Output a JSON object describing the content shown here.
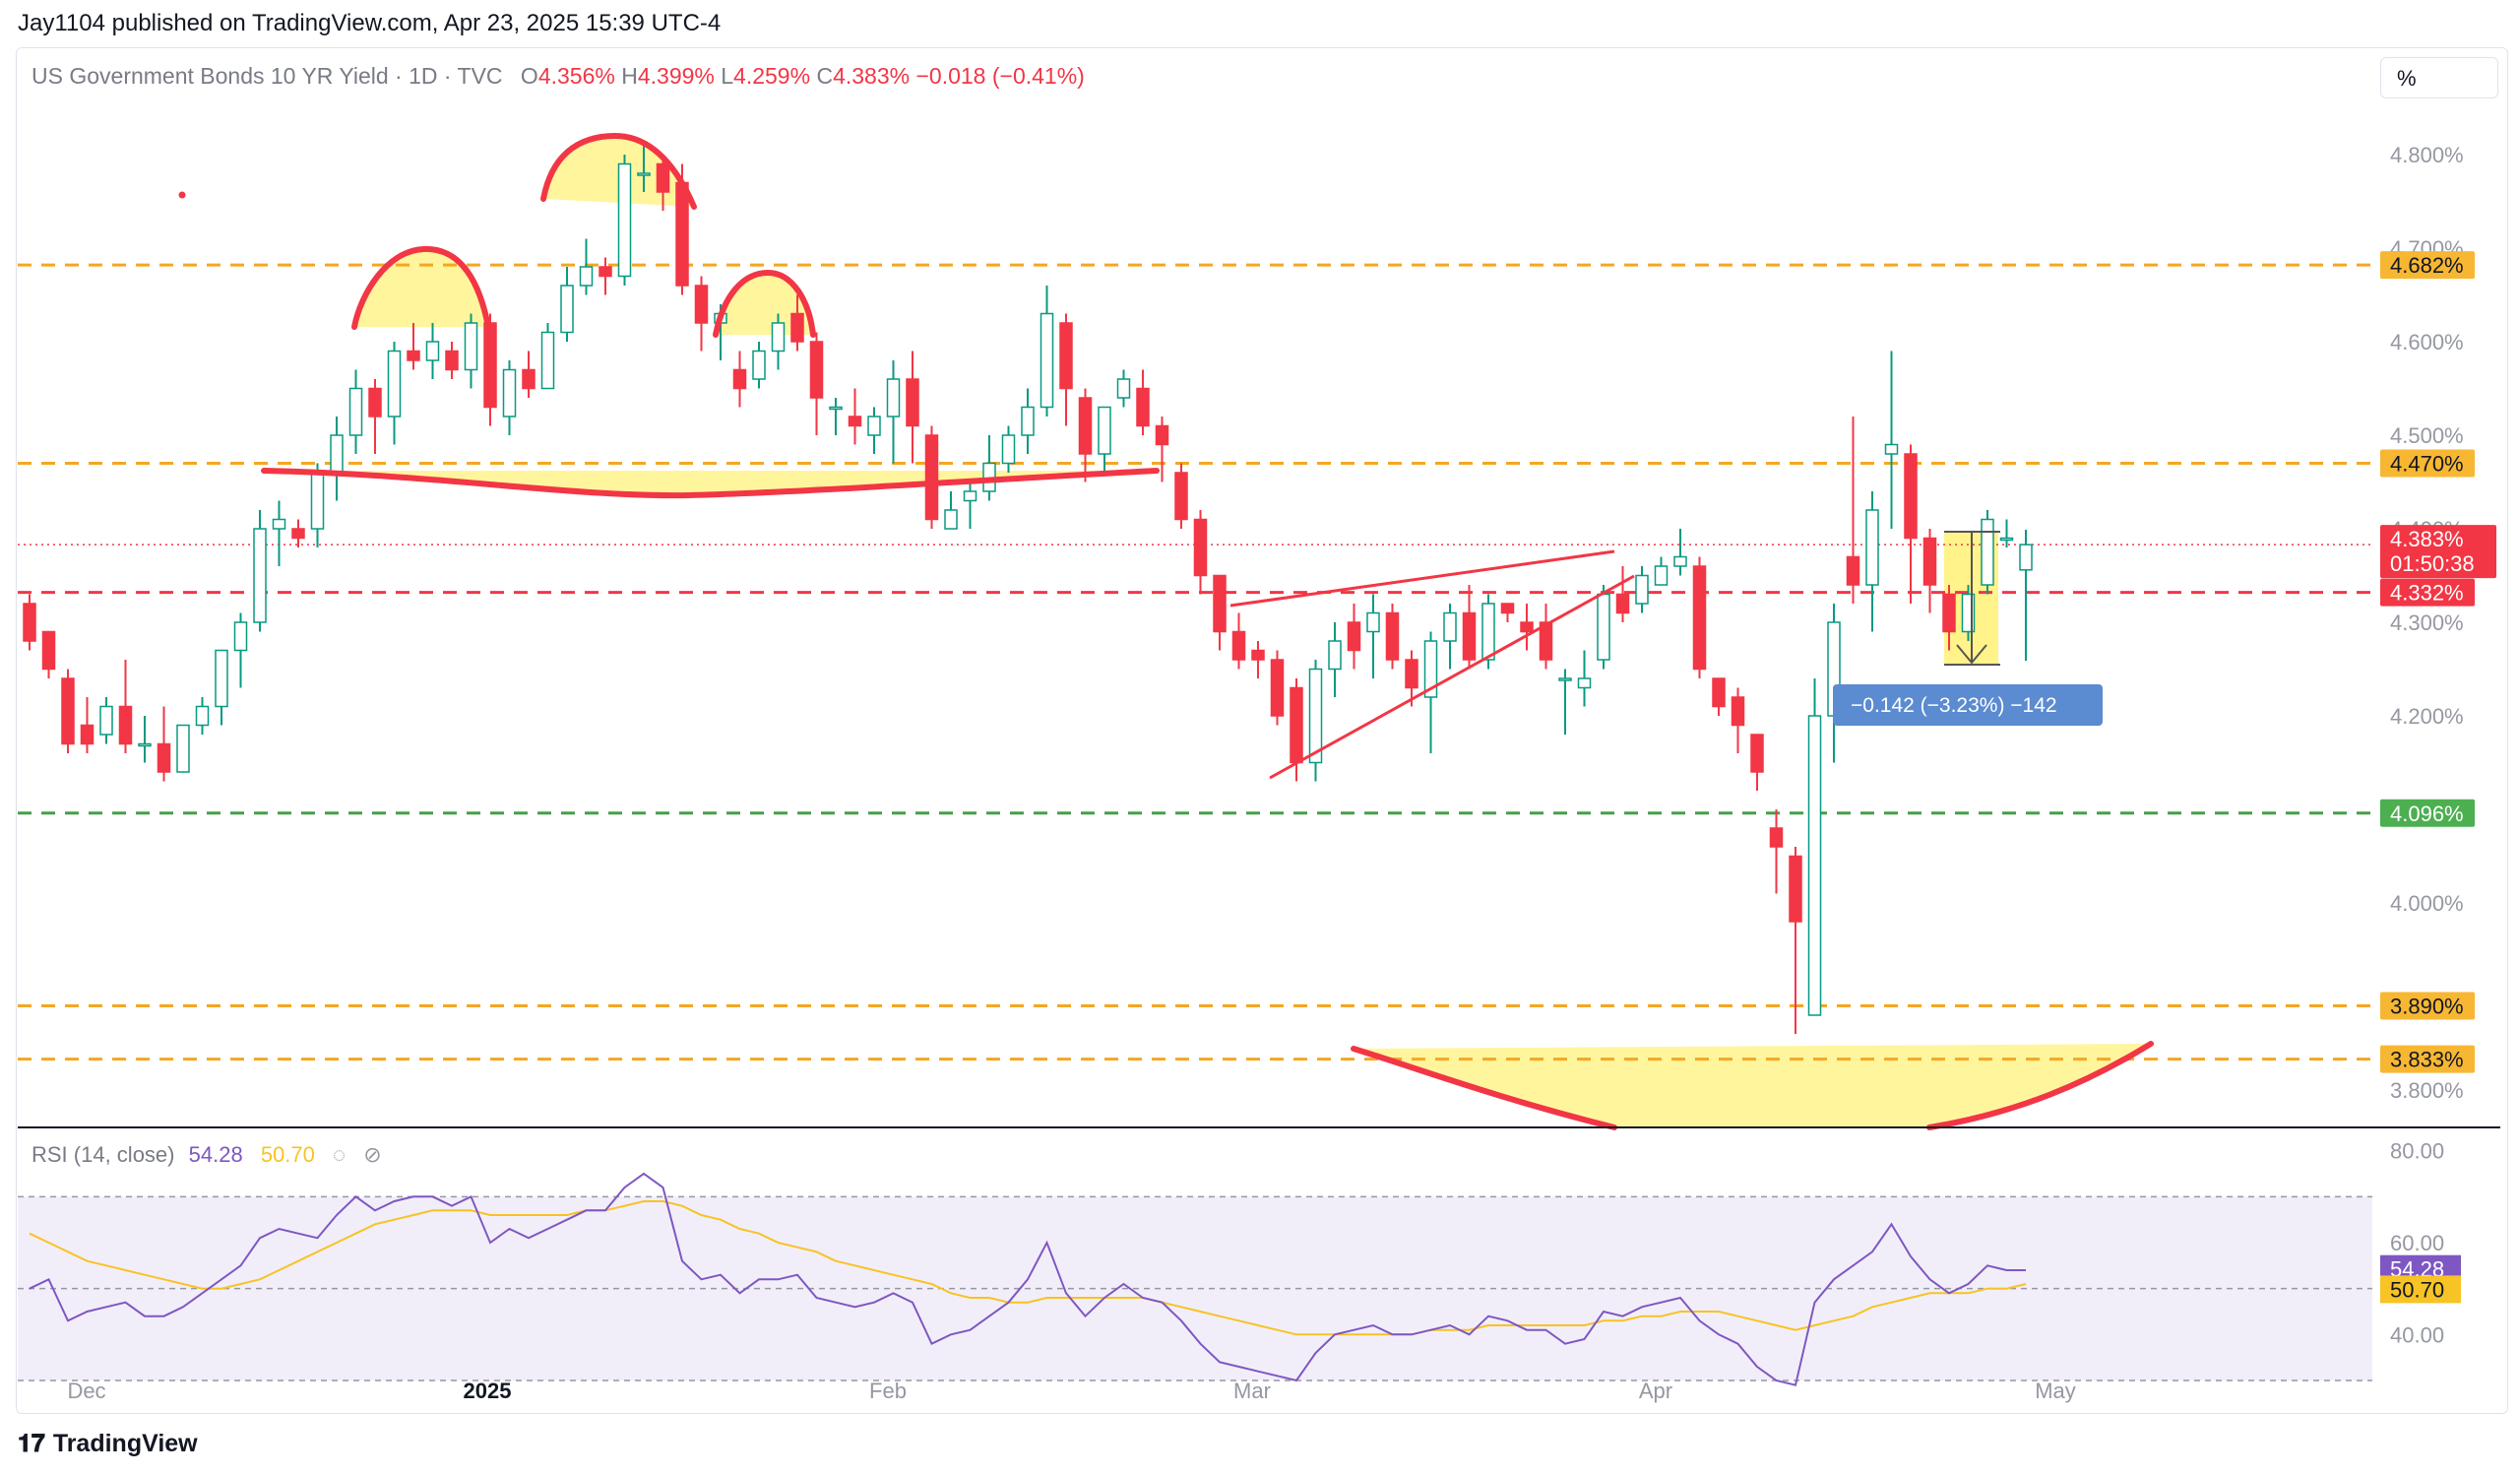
{
  "header": {
    "published": "Jay1104 published on TradingView.com, Apr 23, 2025 15:39 UTC-4"
  },
  "legend": {
    "symbol": "US Government Bonds 10 YR Yield · 1D · TVC",
    "o_label": "O",
    "o": "4.356%",
    "h_label": "H",
    "h": "4.399%",
    "l_label": "L",
    "l": "4.259%",
    "c_label": "C",
    "c": "4.383%",
    "change": "−0.018 (−0.41%)"
  },
  "scale_button": "%",
  "rsi_legend": {
    "label": "RSI (14, close)",
    "rsi": "54.28",
    "ma": "50.70"
  },
  "footer": {
    "brand": "TradingView"
  },
  "colors": {
    "up": "#089981",
    "down": "#f23645",
    "orange": "#f5a623",
    "green": "#43a047",
    "rsi": "#7e57c2",
    "rsi_ma": "#f7c325",
    "measure": "#5b8bd0"
  },
  "chart_data": [
    {
      "type": "candlestick",
      "ylim": [
        3.76,
        4.86
      ],
      "y_ticks": [
        "4.800%",
        "4.700%",
        "4.600%",
        "4.500%",
        "4.400%",
        "4.300%",
        "4.200%",
        "4.000%",
        "3.800%"
      ],
      "x_ticks": [
        "Dec",
        "2025",
        "Feb",
        "Mar",
        "Apr",
        "May"
      ],
      "candles": [
        [
          4.32,
          4.28,
          4.33,
          4.27
        ],
        [
          4.29,
          4.25,
          4.29,
          4.24
        ],
        [
          4.24,
          4.17,
          4.25,
          4.16
        ],
        [
          4.19,
          4.17,
          4.22,
          4.16
        ],
        [
          4.18,
          4.21,
          4.22,
          4.17
        ],
        [
          4.21,
          4.17,
          4.26,
          4.16
        ],
        [
          4.17,
          4.17,
          4.2,
          4.15
        ],
        [
          4.17,
          4.14,
          4.21,
          4.13
        ],
        [
          4.14,
          4.19,
          4.19,
          4.14
        ],
        [
          4.19,
          4.21,
          4.22,
          4.18
        ],
        [
          4.21,
          4.27,
          4.27,
          4.19
        ],
        [
          4.27,
          4.3,
          4.31,
          4.23
        ],
        [
          4.3,
          4.4,
          4.42,
          4.29
        ],
        [
          4.4,
          4.41,
          4.43,
          4.36
        ],
        [
          4.4,
          4.39,
          4.41,
          4.38
        ],
        [
          4.4,
          4.46,
          4.47,
          4.38
        ],
        [
          4.46,
          4.5,
          4.52,
          4.43
        ],
        [
          4.5,
          4.55,
          4.57,
          4.48
        ],
        [
          4.55,
          4.52,
          4.56,
          4.48
        ],
        [
          4.52,
          4.59,
          4.6,
          4.49
        ],
        [
          4.59,
          4.58,
          4.62,
          4.57
        ],
        [
          4.58,
          4.6,
          4.62,
          4.56
        ],
        [
          4.59,
          4.57,
          4.6,
          4.56
        ],
        [
          4.57,
          4.62,
          4.63,
          4.55
        ],
        [
          4.62,
          4.53,
          4.63,
          4.51
        ],
        [
          4.52,
          4.57,
          4.58,
          4.5
        ],
        [
          4.57,
          4.55,
          4.59,
          4.54
        ],
        [
          4.55,
          4.61,
          4.62,
          4.55
        ],
        [
          4.61,
          4.66,
          4.68,
          4.6
        ],
        [
          4.66,
          4.68,
          4.71,
          4.65
        ],
        [
          4.68,
          4.67,
          4.69,
          4.65
        ],
        [
          4.67,
          4.79,
          4.8,
          4.66
        ],
        [
          4.78,
          4.78,
          4.81,
          4.76
        ],
        [
          4.79,
          4.76,
          4.8,
          4.74
        ],
        [
          4.77,
          4.66,
          4.79,
          4.65
        ],
        [
          4.66,
          4.62,
          4.67,
          4.59
        ],
        [
          4.62,
          4.63,
          4.64,
          4.58
        ],
        [
          4.57,
          4.55,
          4.59,
          4.53
        ],
        [
          4.56,
          4.59,
          4.6,
          4.55
        ],
        [
          4.59,
          4.62,
          4.63,
          4.57
        ],
        [
          4.63,
          4.6,
          4.65,
          4.59
        ],
        [
          4.6,
          4.54,
          4.61,
          4.5
        ],
        [
          4.53,
          4.53,
          4.54,
          4.5
        ],
        [
          4.52,
          4.51,
          4.55,
          4.49
        ],
        [
          4.5,
          4.52,
          4.53,
          4.48
        ],
        [
          4.52,
          4.56,
          4.58,
          4.47
        ],
        [
          4.56,
          4.51,
          4.59,
          4.47
        ],
        [
          4.5,
          4.41,
          4.51,
          4.4
        ],
        [
          4.4,
          4.42,
          4.44,
          4.4
        ],
        [
          4.43,
          4.44,
          4.45,
          4.4
        ],
        [
          4.44,
          4.47,
          4.5,
          4.43
        ],
        [
          4.47,
          4.5,
          4.51,
          4.46
        ],
        [
          4.5,
          4.53,
          4.55,
          4.48
        ],
        [
          4.53,
          4.63,
          4.66,
          4.52
        ],
        [
          4.62,
          4.55,
          4.63,
          4.51
        ],
        [
          4.54,
          4.48,
          4.55,
          4.45
        ],
        [
          4.48,
          4.53,
          4.53,
          4.46
        ],
        [
          4.54,
          4.56,
          4.57,
          4.53
        ],
        [
          4.55,
          4.51,
          4.57,
          4.5
        ],
        [
          4.51,
          4.49,
          4.52,
          4.45
        ],
        [
          4.46,
          4.41,
          4.47,
          4.4
        ],
        [
          4.41,
          4.35,
          4.42,
          4.33
        ],
        [
          4.35,
          4.29,
          4.35,
          4.27
        ],
        [
          4.29,
          4.26,
          4.31,
          4.25
        ],
        [
          4.27,
          4.26,
          4.28,
          4.24
        ],
        [
          4.26,
          4.2,
          4.27,
          4.19
        ],
        [
          4.23,
          4.15,
          4.24,
          4.13
        ],
        [
          4.15,
          4.25,
          4.26,
          4.13
        ],
        [
          4.25,
          4.28,
          4.3,
          4.22
        ],
        [
          4.3,
          4.27,
          4.32,
          4.25
        ],
        [
          4.29,
          4.31,
          4.33,
          4.24
        ],
        [
          4.31,
          4.26,
          4.32,
          4.25
        ],
        [
          4.26,
          4.23,
          4.27,
          4.21
        ],
        [
          4.22,
          4.28,
          4.29,
          4.16
        ],
        [
          4.28,
          4.31,
          4.32,
          4.25
        ],
        [
          4.31,
          4.26,
          4.34,
          4.25
        ],
        [
          4.26,
          4.32,
          4.33,
          4.25
        ],
        [
          4.32,
          4.31,
          4.32,
          4.3
        ],
        [
          4.3,
          4.29,
          4.32,
          4.27
        ],
        [
          4.3,
          4.26,
          4.32,
          4.25
        ],
        [
          4.24,
          4.24,
          4.25,
          4.18
        ],
        [
          4.23,
          4.24,
          4.27,
          4.21
        ],
        [
          4.26,
          4.33,
          4.34,
          4.25
        ],
        [
          4.33,
          4.31,
          4.36,
          4.3
        ],
        [
          4.32,
          4.35,
          4.36,
          4.31
        ],
        [
          4.34,
          4.36,
          4.37,
          4.34
        ],
        [
          4.36,
          4.37,
          4.4,
          4.35
        ],
        [
          4.36,
          4.25,
          4.37,
          4.24
        ],
        [
          4.24,
          4.21,
          4.24,
          4.2
        ],
        [
          4.22,
          4.19,
          4.23,
          4.16
        ],
        [
          4.18,
          4.14,
          4.18,
          4.12
        ],
        [
          4.08,
          4.06,
          4.1,
          4.01
        ],
        [
          4.05,
          3.98,
          4.06,
          3.86
        ],
        [
          3.88,
          4.2,
          4.24,
          3.88
        ],
        [
          4.2,
          4.3,
          4.32,
          4.15
        ],
        [
          4.37,
          4.34,
          4.52,
          4.32
        ],
        [
          4.34,
          4.42,
          4.44,
          4.29
        ],
        [
          4.48,
          4.49,
          4.59,
          4.4
        ],
        [
          4.48,
          4.39,
          4.49,
          4.32
        ],
        [
          4.39,
          4.34,
          4.4,
          4.31
        ],
        [
          4.33,
          4.29,
          4.34,
          4.27
        ],
        [
          4.29,
          4.33,
          4.34,
          4.28
        ],
        [
          4.34,
          4.41,
          4.42,
          4.33
        ],
        [
          4.39,
          4.39,
          4.41,
          4.38
        ],
        [
          4.356,
          4.383,
          4.399,
          4.259
        ]
      ],
      "levels": [
        {
          "value": 4.682,
          "label": "4.682%",
          "style": "orange-dashed"
        },
        {
          "value": 4.47,
          "label": "4.470%",
          "style": "orange-dashed"
        },
        {
          "value": 4.332,
          "label": "4.332%",
          "style": "red-dashed"
        },
        {
          "value": 4.096,
          "label": "4.096%",
          "style": "green-dashed"
        },
        {
          "value": 3.89,
          "label": "3.890%",
          "style": "orange-dashed"
        },
        {
          "value": 3.833,
          "label": "3.833%",
          "style": "orange-dashed"
        }
      ],
      "last_price": {
        "label": "4.383%",
        "countdown": "01:50:38"
      },
      "measure_label": "−0.142 (−3.23%) −142"
    },
    {
      "type": "line",
      "name": "RSI (14, close)",
      "ylim": [
        24,
        84
      ],
      "y_ticks": [
        "80.00",
        "60.00",
        "40.00"
      ],
      "band": [
        70,
        30
      ],
      "series": [
        {
          "name": "RSI",
          "current": 54.28,
          "values": [
            50,
            52,
            43,
            45,
            46,
            47,
            44,
            44,
            46,
            49,
            52,
            55,
            61,
            63,
            62,
            61,
            66,
            70,
            67,
            69,
            70,
            70,
            68,
            70,
            60,
            63,
            61,
            63,
            65,
            67,
            67,
            72,
            75,
            72,
            56,
            52,
            53,
            49,
            52,
            52,
            53,
            48,
            47,
            46,
            47,
            49,
            47,
            38,
            40,
            41,
            44,
            47,
            52,
            60,
            49,
            44,
            48,
            51,
            48,
            47,
            43,
            38,
            34,
            33,
            32,
            31,
            30,
            36,
            40,
            41,
            42,
            40,
            40,
            41,
            42,
            40,
            44,
            43,
            41,
            41,
            38,
            39,
            45,
            44,
            46,
            47,
            48,
            43,
            40,
            38,
            33,
            30,
            29,
            47,
            52,
            55,
            58,
            64,
            57,
            52,
            49,
            51,
            55,
            54,
            54
          ]
        },
        {
          "name": "RSI MA",
          "current": 50.7,
          "values": [
            62,
            60,
            58,
            56,
            55,
            54,
            53,
            52,
            51,
            50,
            50,
            51,
            52,
            54,
            56,
            58,
            60,
            62,
            64,
            65,
            66,
            67,
            67,
            67,
            66,
            66,
            66,
            66,
            66,
            67,
            67,
            68,
            69,
            69,
            68,
            66,
            65,
            63,
            62,
            60,
            59,
            58,
            56,
            55,
            54,
            53,
            52,
            51,
            49,
            48,
            48,
            47,
            47,
            48,
            48,
            48,
            48,
            48,
            48,
            47,
            46,
            45,
            44,
            43,
            42,
            41,
            40,
            40,
            40,
            40,
            40,
            40,
            40,
            41,
            41,
            41,
            42,
            42,
            42,
            42,
            42,
            42,
            43,
            43,
            44,
            44,
            45,
            45,
            45,
            44,
            43,
            42,
            41,
            42,
            43,
            44,
            46,
            47,
            48,
            49,
            49,
            49,
            50,
            50,
            51
          ]
        }
      ],
      "x_ticks": [
        "Dec",
        "2025",
        "Feb",
        "Mar",
        "Apr",
        "May"
      ]
    }
  ]
}
